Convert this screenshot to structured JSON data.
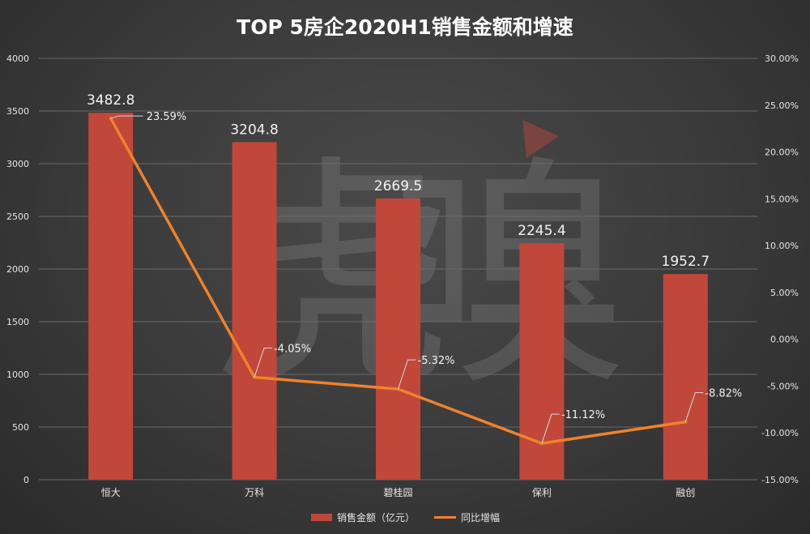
{
  "chart_data": {
    "type": "bar+line",
    "title": "TOP 5房企2020H1销售金额和增速",
    "categories": [
      "恒大",
      "万科",
      "碧桂园",
      "保利",
      "融创"
    ],
    "series": [
      {
        "name": "销售金额（亿元）",
        "type": "bar",
        "axis": "left",
        "color": "#c0473a",
        "values": [
          3482.8,
          3204.8,
          2669.5,
          2245.4,
          1952.7
        ],
        "labels": [
          "3482.8",
          "3204.8",
          "2669.5",
          "2245.4",
          "1952.7"
        ]
      },
      {
        "name": "同比增幅",
        "type": "line",
        "axis": "right",
        "color": "#f0822a",
        "values": [
          23.59,
          -4.05,
          -5.32,
          -11.12,
          -8.82
        ],
        "labels": [
          "23.59%",
          "-4.05%",
          "-5.32%",
          "-11.12%",
          "-8.82%"
        ]
      }
    ],
    "left_axis": {
      "ylim": [
        0,
        4000
      ],
      "ticks": [
        "0",
        "500",
        "1000",
        "1500",
        "2000",
        "2500",
        "3000",
        "3500",
        "4000"
      ]
    },
    "right_axis": {
      "ylim": [
        -15,
        30
      ],
      "ticks": [
        "-15.00%",
        "-10.00%",
        "-5.00%",
        "0.00%",
        "5.00%",
        "10.00%",
        "15.00%",
        "20.00%",
        "25.00%",
        "30.00%"
      ]
    },
    "grid": true,
    "legend_position": "bottom",
    "watermark": "虎嗅"
  }
}
